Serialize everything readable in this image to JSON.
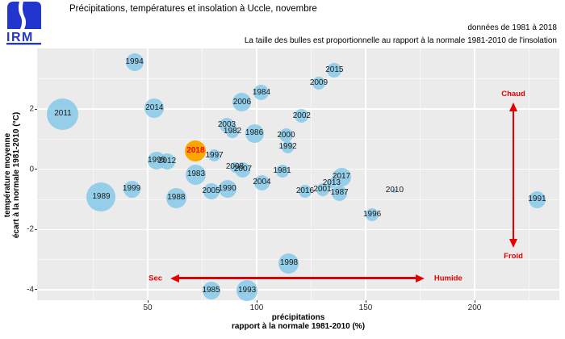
{
  "header": {
    "logo_text": "IRM",
    "title": "Précipitations, températures et insolation à Uccle, novembre",
    "note_line1": "données de 1981 à 2018",
    "note_line2": "La taille des bulles est proportionnelle au rapport à la normale 1981-2010 de l'insolation"
  },
  "colors": {
    "bubble": "#8CCBE8",
    "bubble_highlight": "#FFA500",
    "highlight_label": "#FF0000",
    "panel_bg": "#EBEBEB",
    "grid": "#FFFFFF",
    "annotation": "#E60000",
    "logo_blue": "#2236CE",
    "label": "#1A1A1A"
  },
  "chart_data": {
    "type": "bubble",
    "title": "Précipitations, températures et insolation à Uccle, novembre",
    "xlabel_line1": "précipitations",
    "xlabel_line2": "rapport à la normale 1981-2010 (%)",
    "ylabel_line1": "température moyenne",
    "ylabel_line2": "écart à la normale 1981-2010 (°C)",
    "x_ticks": [
      50,
      100,
      150,
      200
    ],
    "y_ticks": [
      2,
      0,
      -2,
      -4
    ],
    "x_minor": [
      25,
      75,
      125,
      175,
      225
    ],
    "y_minor": [
      3,
      1,
      -1,
      -3
    ],
    "xlim": [
      -0.7,
      239
    ],
    "ylim": [
      -4.35,
      4.0
    ],
    "grid": "on",
    "size_meaning": "bubble radius (px) proportional to insolation ratio vs 1981-2010 normal",
    "points": [
      {
        "year": "1981",
        "x": 111.7,
        "y": -0.05,
        "r": 8,
        "highlight": false
      },
      {
        "year": "1982",
        "x": 88.9,
        "y": 1.25,
        "r": 8,
        "highlight": false
      },
      {
        "year": "1983",
        "x": 72.2,
        "y": -0.18,
        "r": 12.5,
        "highlight": false
      },
      {
        "year": "1984",
        "x": 102.2,
        "y": 2.55,
        "r": 9.5,
        "highlight": false
      },
      {
        "year": "1985",
        "x": 79.1,
        "y": -4.04,
        "r": 11,
        "highlight": false
      },
      {
        "year": "1986",
        "x": 98.9,
        "y": 1.19,
        "r": 11.5,
        "highlight": false
      },
      {
        "year": "1987",
        "x": 138.0,
        "y": -0.79,
        "r": 9.5,
        "highlight": false
      },
      {
        "year": "1988",
        "x": 63.1,
        "y": -0.95,
        "r": 12.5,
        "highlight": false
      },
      {
        "year": "1989",
        "x": 28.7,
        "y": -0.93,
        "r": 18,
        "highlight": false
      },
      {
        "year": "1990",
        "x": 86.5,
        "y": -0.66,
        "r": 11,
        "highlight": false
      },
      {
        "year": "1991",
        "x": 228.7,
        "y": -1.0,
        "r": 10.5,
        "highlight": false
      },
      {
        "year": "1992",
        "x": 114.3,
        "y": 0.74,
        "r": 7.5,
        "highlight": false
      },
      {
        "year": "1993",
        "x": 95.6,
        "y": -4.03,
        "r": 13,
        "highlight": false
      },
      {
        "year": "1994",
        "x": 43.9,
        "y": 3.57,
        "r": 11,
        "highlight": false
      },
      {
        "year": "1995",
        "x": 54.1,
        "y": 0.3,
        "r": 11,
        "highlight": false
      },
      {
        "year": "1996",
        "x": 153.0,
        "y": -1.51,
        "r": 8,
        "highlight": false
      },
      {
        "year": "1997",
        "x": 80.6,
        "y": 0.46,
        "r": 7.5,
        "highlight": false
      },
      {
        "year": "1998",
        "x": 114.8,
        "y": -3.12,
        "r": 12.5,
        "highlight": false
      },
      {
        "year": "1999",
        "x": 42.6,
        "y": -0.66,
        "r": 10.5,
        "highlight": false
      },
      {
        "year": "2000",
        "x": 113.5,
        "y": 1.13,
        "r": 8.5,
        "highlight": false
      },
      {
        "year": "2001",
        "x": 130.2,
        "y": -0.68,
        "r": 8,
        "highlight": false
      },
      {
        "year": "2002",
        "x": 120.7,
        "y": 1.77,
        "r": 8.5,
        "highlight": false
      },
      {
        "year": "2003",
        "x": 86.3,
        "y": 1.47,
        "r": 9,
        "highlight": false
      },
      {
        "year": "2004",
        "x": 102.4,
        "y": -0.45,
        "r": 9.5,
        "highlight": false
      },
      {
        "year": "2005",
        "x": 79.1,
        "y": -0.72,
        "r": 10,
        "highlight": false
      },
      {
        "year": "2006",
        "x": 93.3,
        "y": 2.23,
        "r": 11.5,
        "highlight": false
      },
      {
        "year": "2007",
        "x": 93.7,
        "y": -0.02,
        "r": 9.5,
        "highlight": false
      },
      {
        "year": "2008",
        "x": 90.0,
        "y": 0.07,
        "r": 6.5,
        "highlight": false
      },
      {
        "year": "2009",
        "x": 128.5,
        "y": 2.85,
        "r": 8,
        "highlight": false
      },
      {
        "year": "2010",
        "x": 163.3,
        "y": -0.71,
        "r": 2.5,
        "highlight": false
      },
      {
        "year": "2011",
        "x": 11.1,
        "y": 1.84,
        "r": 19.5,
        "highlight": false
      },
      {
        "year": "2012",
        "x": 58.9,
        "y": 0.26,
        "r": 10,
        "highlight": false
      },
      {
        "year": "2013",
        "x": 134.4,
        "y": -0.46,
        "r": 6,
        "highlight": false
      },
      {
        "year": "2014",
        "x": 53.1,
        "y": 2.04,
        "r": 12,
        "highlight": false
      },
      {
        "year": "2015",
        "x": 135.7,
        "y": 3.3,
        "r": 9,
        "highlight": false
      },
      {
        "year": "2016",
        "x": 122.2,
        "y": -0.72,
        "r": 8,
        "highlight": false
      },
      {
        "year": "2017",
        "x": 138.9,
        "y": -0.25,
        "r": 11.5,
        "highlight": false
      },
      {
        "year": "2018",
        "x": 72.0,
        "y": 0.61,
        "r": 13,
        "highlight": true
      }
    ],
    "annotations": {
      "horizontal_arrow": {
        "left_label": "Sec",
        "right_label": "Humide",
        "y": -3.62,
        "x_start": 60.4,
        "x_end": 177.0
      },
      "vertical_arrow": {
        "top_label": "Chaud",
        "bottom_label": "Froid",
        "x": 217.8,
        "y_start": 2.22,
        "y_end": -2.61
      }
    }
  }
}
